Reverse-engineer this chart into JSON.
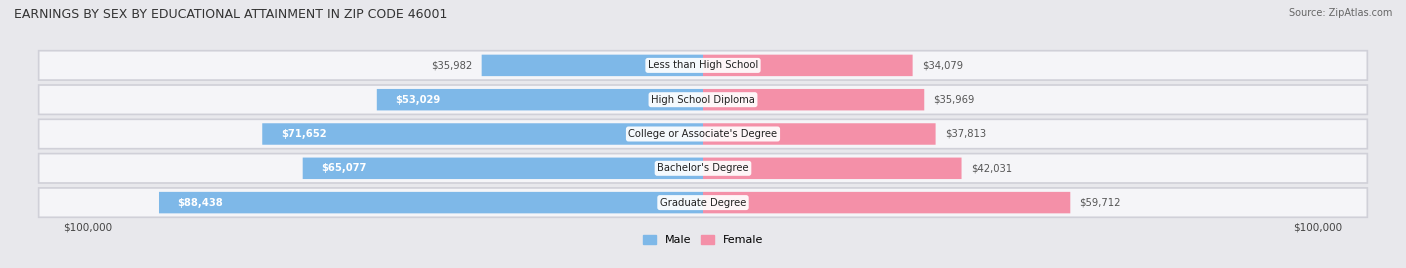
{
  "title": "EARNINGS BY SEX BY EDUCATIONAL ATTAINMENT IN ZIP CODE 46001",
  "source": "Source: ZipAtlas.com",
  "categories": [
    "Less than High School",
    "High School Diploma",
    "College or Associate's Degree",
    "Bachelor's Degree",
    "Graduate Degree"
  ],
  "male_values": [
    35982,
    53029,
    71652,
    65077,
    88438
  ],
  "female_values": [
    34079,
    35969,
    37813,
    42031,
    59712
  ],
  "max_val": 100000,
  "male_color": "#7EB8E8",
  "female_color": "#F490A8",
  "bg_color": "#E8E8EC",
  "row_bg_color": "#F5F5F8",
  "row_border_color": "#D0D0D8",
  "title_color": "#333333",
  "source_color": "#666666",
  "legend_male_color": "#7EB8E8",
  "legend_female_color": "#F490A8",
  "value_outside_color": "#555555",
  "value_inside_color": "#FFFFFF"
}
